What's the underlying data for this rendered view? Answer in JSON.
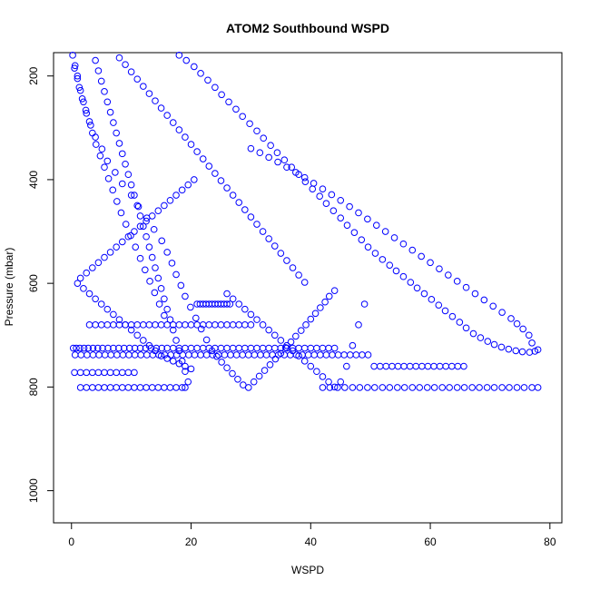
{
  "chart_data": {
    "type": "scatter",
    "title": "ATOM2 Southbound WSPD",
    "xlabel": "WSPD",
    "ylabel": "Pressure (mbar)",
    "xlim": [
      -3,
      82
    ],
    "ylim": [
      1062,
      155
    ],
    "y_reversed": true,
    "x_ticks": [
      0,
      20,
      40,
      60,
      80
    ],
    "y_ticks": [
      200,
      400,
      600,
      800,
      1000
    ],
    "grid": false,
    "legend": "none",
    "marker": "open-circle",
    "color": "#0000ff",
    "series": [
      {
        "x": [
          0.5,
          1.0,
          1.5,
          2.0,
          2.5,
          3.2,
          4.0,
          5.1,
          6.0,
          7.3,
          8.5,
          10.0,
          11.2,
          12.6,
          13.8,
          15.1,
          16.0,
          16.8,
          17.5,
          18.3,
          19.0,
          19.9,
          20.8,
          21.7,
          22.6,
          23.5,
          24.3,
          25.1,
          26.0,
          26.9,
          27.8,
          28.7,
          29.6,
          30.5,
          31.4,
          32.3,
          33.2,
          34.1,
          35.0,
          35.8,
          36.7,
          37.5,
          38.4,
          39.2,
          40.0,
          40.8,
          41.6,
          42.4,
          43.1,
          44.0
        ],
        "y": [
          185,
          205,
          228,
          250,
          272,
          295,
          318,
          341,
          364,
          386,
          408,
          430,
          452,
          474,
          496,
          518,
          540,
          561,
          583,
          604,
          625,
          646,
          667,
          688,
          709,
          730,
          741,
          752,
          763,
          774,
          785,
          796,
          801,
          790,
          779,
          768,
          757,
          746,
          735,
          724,
          713,
          702,
          691,
          680,
          669,
          658,
          647,
          636,
          625,
          614
        ]
      },
      {
        "x": [
          18.0,
          19.2,
          20.5,
          21.6,
          22.8,
          24.0,
          25.1,
          26.3,
          27.5,
          28.6,
          29.8,
          31.0,
          32.1,
          33.3,
          34.4,
          35.6,
          36.8,
          38.0,
          39.1,
          40.3,
          41.5,
          42.6,
          43.8,
          45.0,
          46.1,
          47.3,
          48.5,
          49.6,
          50.8,
          52.0,
          53.2,
          54.3,
          55.5,
          56.7,
          57.8,
          59.0,
          60.2,
          61.4,
          62.5,
          63.7,
          64.9,
          66.0,
          67.2,
          68.4,
          69.6,
          70.7,
          71.9,
          73.1,
          74.3,
          75.4,
          76.6,
          77.5,
          78.0
        ],
        "y": [
          160,
          170,
          182,
          195,
          208,
          222,
          236,
          250,
          264,
          278,
          292,
          306,
          320,
          334,
          348,
          362,
          376,
          390,
          404,
          418,
          432,
          446,
          460,
          474,
          488,
          502,
          516,
          530,
          542,
          554,
          565,
          576,
          587,
          598,
          609,
          620,
          631,
          642,
          653,
          664,
          675,
          686,
          697,
          705,
          712,
          718,
          723,
          727,
          730,
          732,
          733,
          731,
          728
        ]
      },
      {
        "x": [
          0.3,
          0.8,
          1.4,
          2.1,
          2.8,
          3.6,
          4.4,
          5.2,
          6.1,
          7.0,
          7.9,
          8.8,
          9.7,
          10.6,
          11.5,
          12.4,
          13.3,
          14.2,
          15.1,
          16.0,
          17.0,
          18.0,
          19.0,
          20.0,
          21.0,
          22.0,
          23.0,
          24.0,
          25.0,
          26.0,
          27.0,
          28.0,
          29.0,
          30.0,
          31.0,
          32.0,
          33.0,
          34.0,
          35.0,
          36.0,
          37.0,
          38.0,
          39.0,
          40.0,
          41.0,
          42.0,
          43.0,
          44.0
        ],
        "y": [
          725,
          725,
          725,
          725,
          725,
          725,
          725,
          725,
          725,
          725,
          725,
          725,
          725,
          725,
          725,
          725,
          725,
          725,
          725,
          725,
          725,
          725,
          725,
          725,
          725,
          725,
          725,
          725,
          725,
          725,
          725,
          725,
          725,
          725,
          725,
          725,
          725,
          725,
          725,
          725,
          725,
          725,
          725,
          725,
          725,
          725,
          725,
          725
        ]
      },
      {
        "x": [
          42.0,
          43.2,
          44.5,
          45.7,
          47.0,
          48.2,
          49.5,
          50.7,
          52.0,
          53.2,
          54.5,
          55.7,
          57.0,
          58.2,
          59.5,
          60.7,
          62.0,
          63.2,
          64.5,
          65.7,
          67.0,
          68.2,
          69.5,
          70.7,
          72.0,
          73.2,
          74.5,
          75.7,
          77.0,
          78.0
        ],
        "y": [
          801,
          801,
          801,
          801,
          801,
          801,
          801,
          801,
          801,
          801,
          801,
          801,
          801,
          801,
          801,
          801,
          801,
          801,
          801,
          801,
          801,
          801,
          801,
          801,
          801,
          801,
          801,
          801,
          801,
          801
        ]
      },
      {
        "x": [
          0.6,
          1.6,
          2.6,
          3.6,
          4.6,
          5.6,
          6.6,
          7.6,
          8.6,
          9.6,
          10.6,
          11.6,
          12.6,
          13.6,
          14.6,
          15.6,
          16.6,
          17.6,
          18.6,
          19.6,
          20.6,
          21.6,
          22.6,
          23.6,
          24.6,
          25.6,
          26.6,
          27.6,
          28.6,
          29.6,
          30.6,
          31.6,
          32.6,
          33.6,
          34.6,
          35.6,
          36.6,
          37.6,
          38.6,
          39.6,
          40.6,
          41.6,
          42.6,
          43.6,
          44.6,
          45.6,
          46.6,
          47.6,
          48.6,
          49.6,
          50.6,
          51.6,
          52.6,
          53.6,
          54.6,
          55.6,
          56.6,
          57.6,
          58.6,
          59.6,
          60.6,
          61.6,
          62.6,
          63.6,
          64.6,
          65.6
        ],
        "y": [
          738,
          738,
          738,
          738,
          738,
          738,
          738,
          738,
          738,
          738,
          738,
          738,
          738,
          738,
          738,
          738,
          738,
          738,
          738,
          738,
          738,
          738,
          738,
          738,
          738,
          738,
          738,
          738,
          738,
          738,
          738,
          738,
          738,
          738,
          738,
          738,
          738,
          738,
          738,
          738,
          738,
          738,
          738,
          738,
          738,
          738,
          738,
          738,
          738,
          738,
          760,
          760,
          760,
          760,
          760,
          760,
          760,
          760,
          760,
          760,
          760,
          760,
          760,
          760,
          760,
          760
        ]
      },
      {
        "x": [
          3.0,
          4.0,
          5.0,
          6.0,
          7.0,
          8.0,
          9.0,
          10.0,
          11.0,
          12.0,
          13.0,
          14.0,
          15.0,
          16.0,
          17.0,
          18.0,
          19.0,
          20.0,
          21.0,
          22.0,
          23.0,
          24.0,
          25.0,
          26.0,
          27.0,
          28.0,
          29.0,
          30.0
        ],
        "y": [
          680,
          680,
          680,
          680,
          680,
          680,
          680,
          680,
          680,
          680,
          680,
          680,
          680,
          680,
          680,
          680,
          680,
          680,
          680,
          680,
          680,
          680,
          680,
          680,
          680,
          680,
          680,
          680
        ]
      },
      {
        "x": [
          1.5,
          2.5,
          3.5,
          4.5,
          5.5,
          6.5,
          7.5,
          8.5,
          9.5,
          10.5,
          11.5,
          12.5,
          13.5,
          14.5,
          15.5,
          16.5,
          17.5,
          18.5,
          19.0
        ],
        "y": [
          801,
          801,
          801,
          801,
          801,
          801,
          801,
          801,
          801,
          801,
          801,
          801,
          801,
          801,
          801,
          801,
          801,
          801,
          801
        ]
      },
      {
        "x": [
          0.5,
          1.5,
          2.5,
          3.5,
          4.5,
          5.5,
          6.5,
          7.5,
          8.5,
          9.5,
          10.5
        ],
        "y": [
          772,
          772,
          772,
          772,
          772,
          772,
          772,
          772,
          772,
          772,
          772
        ]
      },
      {
        "x": [
          0.2,
          0.6,
          1.0,
          1.3,
          1.8,
          2.4,
          3.0,
          3.5,
          4.1,
          4.8,
          5.5,
          6.2,
          6.9,
          7.6,
          8.3,
          9.1,
          9.9,
          10.7,
          11.5,
          12.3,
          13.1,
          13.9,
          14.7,
          15.5
        ],
        "y": [
          160,
          180,
          200,
          222,
          244,
          266,
          288,
          310,
          332,
          354,
          376,
          398,
          420,
          442,
          464,
          486,
          508,
          530,
          552,
          574,
          596,
          618,
          640,
          662
        ]
      },
      {
        "x": [
          8.0,
          9.0,
          10.0,
          11.0,
          12.0,
          13.0,
          14.0,
          15.0,
          16.0,
          17.0,
          18.0,
          19.0,
          20.0,
          21.0,
          22.0,
          23.0,
          24.0,
          25.0,
          26.0,
          27.0,
          28.0,
          29.0,
          30.0,
          31.0,
          32.0,
          33.0,
          34.0,
          35.0,
          36.0,
          37.0,
          38.0,
          39.0
        ],
        "y": [
          165,
          178,
          192,
          206,
          220,
          234,
          248,
          262,
          276,
          290,
          304,
          318,
          332,
          346,
          360,
          374,
          388,
          402,
          416,
          430,
          444,
          458,
          472,
          486,
          500,
          514,
          528,
          542,
          556,
          570,
          584,
          598
        ]
      },
      {
        "x": [
          30.0,
          31.5,
          33.0,
          34.5,
          36.0,
          37.5,
          39.0,
          40.5,
          42.0,
          43.5,
          45.0,
          46.5,
          48.0,
          49.5,
          51.0,
          52.5,
          54.0,
          55.5,
          57.0,
          58.5,
          60.0,
          61.5,
          63.0,
          64.5,
          66.0,
          67.5,
          69.0,
          70.5,
          72.0,
          73.5,
          74.5,
          75.5,
          76.5,
          77.0
        ],
        "y": [
          340,
          348,
          357,
          366,
          376,
          386,
          396,
          407,
          418,
          429,
          440,
          452,
          464,
          476,
          488,
          500,
          512,
          524,
          536,
          548,
          560,
          572,
          584,
          596,
          608,
          620,
          632,
          644,
          656,
          668,
          678,
          688,
          700,
          715
        ]
      },
      {
        "x": [
          1.0,
          1.5,
          2.0,
          2.5,
          3.0,
          3.5,
          4.0,
          4.5,
          5.0,
          5.5,
          6.0,
          6.5,
          7.0,
          7.5,
          8.0,
          8.5,
          9.0,
          9.5,
          10.0,
          10.5,
          11.0,
          11.5,
          12.0,
          12.5,
          13.0,
          13.5,
          14.0,
          14.5,
          15.0,
          15.5,
          16.0,
          16.5,
          17.0,
          17.5,
          18.0,
          18.5,
          19.0,
          19.5,
          20.0,
          20.5
        ],
        "y": [
          600,
          590,
          610,
          580,
          620,
          570,
          630,
          560,
          640,
          550,
          650,
          540,
          660,
          530,
          670,
          520,
          680,
          510,
          690,
          500,
          700,
          490,
          710,
          480,
          720,
          470,
          730,
          460,
          740,
          450,
          745,
          440,
          750,
          430,
          755,
          420,
          760,
          410,
          765,
          400
        ]
      },
      {
        "x": [
          26.0,
          27.0,
          28.0,
          29.0,
          30.0,
          31.0,
          32.0,
          33.0,
          34.0,
          35.0,
          36.0,
          37.0,
          38.0,
          39.0,
          40.0,
          41.0,
          42.0,
          43.0,
          44.0,
          45.0,
          46.0,
          47.0,
          48.0,
          49.0
        ],
        "y": [
          620,
          630,
          640,
          650,
          660,
          670,
          680,
          690,
          700,
          710,
          720,
          730,
          740,
          750,
          760,
          770,
          780,
          790,
          800,
          790,
          760,
          720,
          680,
          640
        ]
      },
      {
        "x": [
          21.0,
          21.5,
          22.0,
          22.5,
          23.0,
          23.5,
          24.0,
          24.5,
          25.0,
          25.5,
          26.0,
          26.5
        ],
        "y": [
          640,
          640,
          640,
          640,
          640,
          640,
          640,
          640,
          640,
          640,
          640,
          640
        ]
      },
      {
        "x": [
          4.0,
          4.5,
          5.0,
          5.5,
          6.0,
          6.5,
          7.0,
          7.5,
          8.0,
          8.5,
          9.0,
          9.5,
          10.0,
          10.5,
          11.0,
          11.5,
          12.0,
          12.5,
          13.0,
          13.5,
          14.0,
          14.5,
          15.0,
          15.5,
          16.0,
          16.5,
          17.0,
          17.5,
          18.0,
          18.5,
          19.0,
          19.5
        ],
        "y": [
          170,
          190,
          210,
          230,
          250,
          270,
          290,
          310,
          330,
          350,
          370,
          390,
          410,
          430,
          450,
          470,
          490,
          510,
          530,
          550,
          570,
          590,
          610,
          630,
          650,
          670,
          690,
          710,
          730,
          750,
          770,
          790
        ]
      }
    ]
  }
}
